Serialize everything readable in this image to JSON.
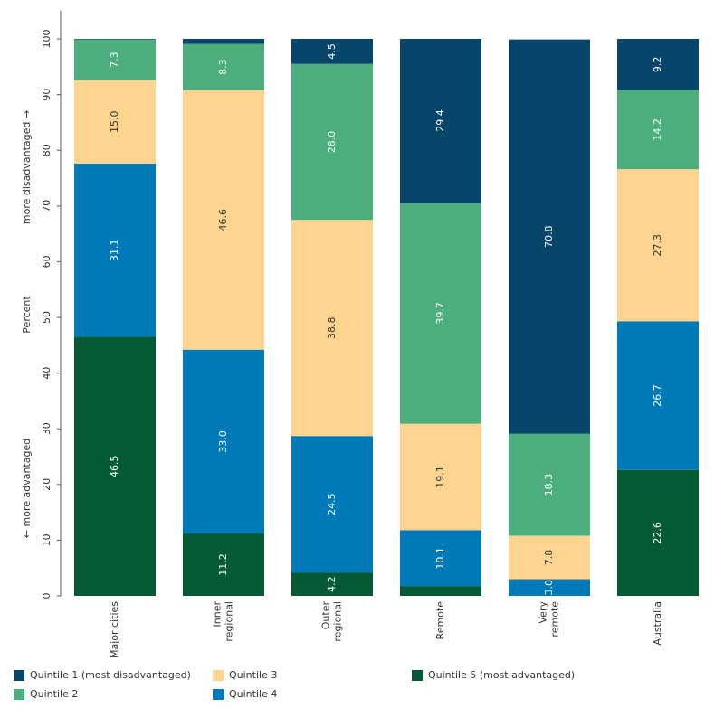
{
  "chart_data": {
    "type": "stacked_bar",
    "y_label": "Percent",
    "y_label_low": "← more advantaged",
    "y_label_high": "more disadvantaged →",
    "categories": [
      "Major cities",
      "Inner\nregional",
      "Outer\nregional",
      "Remote",
      "Very\nremote",
      "Australia"
    ],
    "series": [
      {
        "name": "Quintile 1 (most disadvantaged)",
        "color": "#07456b",
        "values": [
          0.1,
          0.9,
          4.5,
          29.4,
          70.8,
          9.2
        ],
        "value_labels": [
          null,
          null,
          "4.5",
          "29.4",
          "70.8",
          "9.2"
        ]
      },
      {
        "name": "Quintile 2",
        "color": "#4cae7c",
        "values": [
          7.3,
          8.3,
          28.0,
          39.7,
          18.3,
          14.2
        ],
        "value_labels": [
          "7.3",
          "8.3",
          "28.0",
          "39.7",
          "18.3",
          "14.2"
        ]
      },
      {
        "name": "Quintile 3",
        "color": "#fdd590",
        "values": [
          15.0,
          46.6,
          38.8,
          19.1,
          7.8,
          27.3
        ],
        "value_labels": [
          "15.0",
          "46.6",
          "38.8",
          "19.1",
          "7.8",
          "27.3"
        ]
      },
      {
        "name": "Quintile 4",
        "color": "#0079b8",
        "values": [
          31.1,
          33.0,
          24.5,
          10.1,
          3.0,
          26.7
        ],
        "value_labels": [
          "31.1",
          "33.0",
          "24.5",
          "10.1",
          "3.0",
          "26.7"
        ]
      },
      {
        "name": "Quintile 5 (most advantaged)",
        "color": "#035a33",
        "values": [
          46.5,
          11.2,
          4.2,
          1.7,
          0,
          22.6
        ],
        "value_labels": [
          "46.5",
          "11.2",
          "4.2",
          null,
          null,
          "22.6"
        ]
      }
    ],
    "ylim": [
      0,
      100
    ],
    "yticks": [
      0,
      10,
      20,
      30,
      40,
      50,
      60,
      70,
      80,
      90,
      100
    ]
  }
}
